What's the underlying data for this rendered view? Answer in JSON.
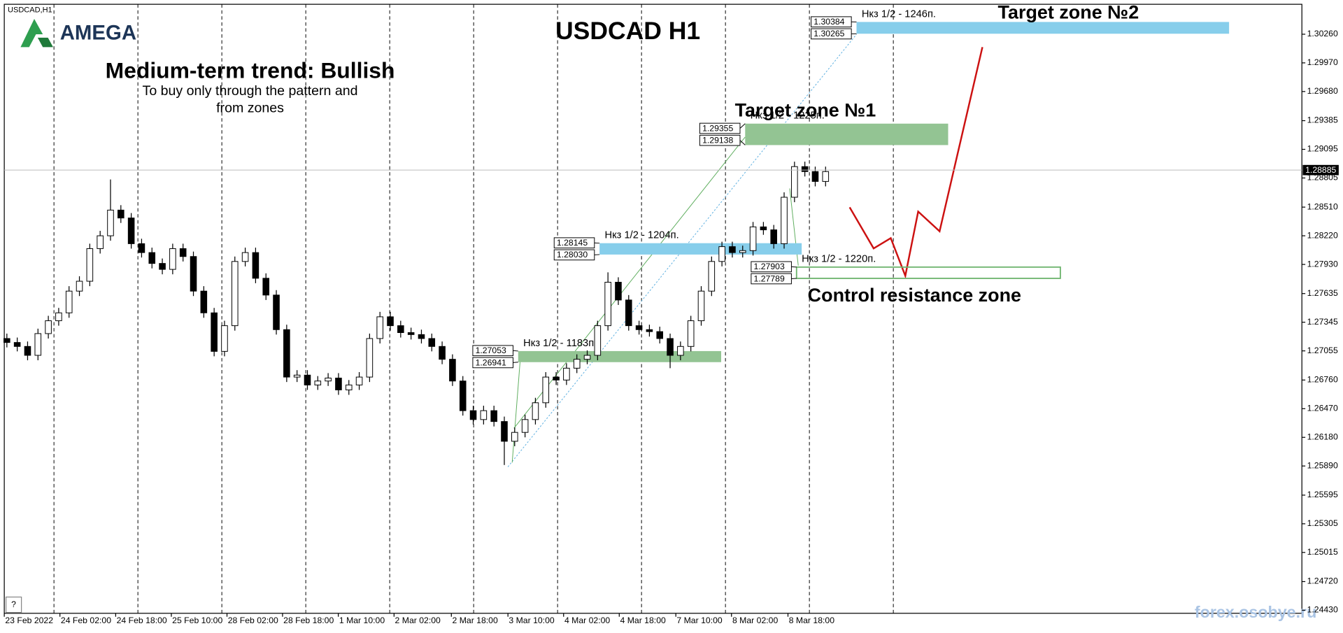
{
  "chart_data": {
    "type": "candlestick",
    "symbol_label": "USDCAD,H1",
    "brand": "AMEGA",
    "title": "USDCAD H1",
    "subtitle": "Medium-term trend: Bullish",
    "notes": [
      "To buy only through the pattern  and",
      "from zones"
    ],
    "watermark": "forex.osobye.ru",
    "help": "?",
    "up_color": "#ffffff",
    "down_color": "#000000",
    "wick_color": "#000000",
    "open": [
      1.2718,
      1.2714,
      1.271,
      1.2701,
      1.2723,
      1.2736,
      1.2744,
      1.2766,
      1.2776,
      1.2809,
      1.2822,
      1.2848,
      1.284,
      1.2814,
      1.2805,
      1.2794,
      1.2788,
      1.2809,
      1.2801,
      1.2766,
      1.2744,
      1.2705,
      1.2731,
      1.2796,
      1.2805,
      1.2779,
      1.2762,
      1.2727,
      1.2679,
      1.2681,
      1.2671,
      1.2675,
      1.2678,
      1.2666,
      1.2671,
      1.2679,
      1.2718,
      1.274,
      1.2731,
      1.2724,
      1.2722,
      1.2718,
      1.271,
      1.2697,
      1.2675,
      1.2645,
      1.2636,
      1.2645,
      1.2634,
      1.2614,
      1.2623,
      1.2636,
      1.2653,
      1.2679,
      1.2676,
      1.2688,
      1.2697,
      1.2701,
      1.2731,
      1.2775,
      1.2757,
      1.2731,
      1.2727,
      1.2725,
      1.2718,
      1.2701,
      1.271,
      1.2736,
      1.2766,
      1.2796,
      1.2811,
      1.2805,
      1.2807,
      1.2831,
      1.2828,
      1.2814,
      1.2861,
      1.2892,
      1.2887,
      1.2877
    ],
    "high": [
      1.2723,
      1.2719,
      1.2715,
      1.2728,
      1.2741,
      1.2749,
      1.2771,
      1.2781,
      1.2814,
      1.2827,
      1.2879,
      1.2853,
      1.2845,
      1.2819,
      1.281,
      1.2799,
      1.2814,
      1.2814,
      1.2806,
      1.2771,
      1.2749,
      1.2736,
      1.2801,
      1.281,
      1.281,
      1.2784,
      1.2767,
      1.2732,
      1.2686,
      1.2686,
      1.268,
      1.2683,
      1.2683,
      1.2676,
      1.2684,
      1.2723,
      1.2745,
      1.2745,
      1.2736,
      1.2729,
      1.2727,
      1.2723,
      1.2715,
      1.2702,
      1.268,
      1.265,
      1.265,
      1.265,
      1.2639,
      1.2628,
      1.2641,
      1.2658,
      1.2684,
      1.2684,
      1.2693,
      1.2702,
      1.2706,
      1.2736,
      1.2785,
      1.278,
      1.2762,
      1.2736,
      1.2732,
      1.273,
      1.2723,
      1.2715,
      1.2741,
      1.2771,
      1.2801,
      1.2816,
      1.2816,
      1.2812,
      1.2836,
      1.2836,
      1.2833,
      1.2866,
      1.2897,
      1.2897,
      1.2892,
      1.2892
    ],
    "low": [
      1.2709,
      1.2705,
      1.2696,
      1.2696,
      1.2718,
      1.2731,
      1.2739,
      1.2761,
      1.2771,
      1.2804,
      1.2817,
      1.2835,
      1.2809,
      1.28,
      1.2789,
      1.2783,
      1.2783,
      1.2796,
      1.2761,
      1.2739,
      1.27,
      1.27,
      1.2726,
      1.2791,
      1.2774,
      1.2757,
      1.2722,
      1.2674,
      1.2674,
      1.2666,
      1.2666,
      1.267,
      1.2661,
      1.2661,
      1.2666,
      1.2674,
      1.2713,
      1.2726,
      1.2719,
      1.2717,
      1.2713,
      1.2705,
      1.2692,
      1.267,
      1.264,
      1.2631,
      1.2631,
      1.2629,
      1.259,
      1.2609,
      1.2618,
      1.2631,
      1.2648,
      1.2671,
      1.2671,
      1.2683,
      1.2692,
      1.2696,
      1.2726,
      1.2752,
      1.2726,
      1.2722,
      1.272,
      1.2713,
      1.2688,
      1.2696,
      1.2705,
      1.2731,
      1.2761,
      1.2791,
      1.28,
      1.28,
      1.2802,
      1.2823,
      1.2809,
      1.2809,
      1.2856,
      1.2882,
      1.2872,
      1.2872
    ],
    "close": [
      1.2714,
      1.271,
      1.2701,
      1.2723,
      1.2736,
      1.2744,
      1.2766,
      1.2776,
      1.2809,
      1.2822,
      1.2848,
      1.284,
      1.2814,
      1.2805,
      1.2794,
      1.2788,
      1.2809,
      1.2801,
      1.2766,
      1.2744,
      1.2705,
      1.2731,
      1.2796,
      1.2805,
      1.2779,
      1.2762,
      1.2727,
      1.2679,
      1.2681,
      1.2671,
      1.2675,
      1.2678,
      1.2666,
      1.2671,
      1.2679,
      1.2718,
      1.274,
      1.2731,
      1.2724,
      1.2722,
      1.2718,
      1.271,
      1.2697,
      1.2675,
      1.2645,
      1.2636,
      1.2645,
      1.2634,
      1.2614,
      1.2623,
      1.2636,
      1.2653,
      1.2679,
      1.2676,
      1.2688,
      1.2697,
      1.2701,
      1.2731,
      1.2775,
      1.2757,
      1.2731,
      1.2727,
      1.2725,
      1.2718,
      1.2701,
      1.271,
      1.2736,
      1.2766,
      1.2796,
      1.2811,
      1.2805,
      1.2807,
      1.2831,
      1.2828,
      1.2814,
      1.2861,
      1.2892,
      1.2887,
      1.2877,
      1.2887
    ],
    "last_price": 1.28885,
    "xlim": [
      -0.25,
      124.96
    ],
    "xticks": [
      {
        "value": -0.25,
        "label": "23 Feb 2022"
      },
      {
        "value": 5.12,
        "label": "24 Feb 02:00"
      },
      {
        "value": 10.5,
        "label": "24 Feb 18:00"
      },
      {
        "value": 15.87,
        "label": "25 Feb 10:00"
      },
      {
        "value": 21.24,
        "label": "28 Feb 02:00"
      },
      {
        "value": 26.6,
        "label": "28 Feb 18:00"
      },
      {
        "value": 31.98,
        "label": "1 Mar 10:00"
      },
      {
        "value": 37.36,
        "label": "2 Mar 02:00"
      },
      {
        "value": 42.89,
        "label": "2 Mar 18:00"
      },
      {
        "value": 48.35,
        "label": "3 Mar 10:00"
      },
      {
        "value": 53.72,
        "label": "4 Mar 02:00"
      },
      {
        "value": 59.09,
        "label": "4 Mar 18:00"
      },
      {
        "value": 64.55,
        "label": "7 Mar 10:00"
      },
      {
        "value": 69.92,
        "label": "8 Mar 02:00"
      },
      {
        "value": 75.37,
        "label": "8 Mar 18:00"
      }
    ],
    "ylim": [
      1.24399,
      1.30563
    ],
    "yticks": [
      {
        "value": 1.3026,
        "label": "1.30260"
      },
      {
        "value": 1.2997,
        "label": "1.29970"
      },
      {
        "value": 1.2968,
        "label": "1.29680"
      },
      1.29385,
      1.29095,
      1.28805,
      {
        "value": 1.2851,
        "label": "1.28510"
      },
      {
        "value": 1.2822,
        "label": "1.28220"
      },
      {
        "value": 1.2793,
        "label": "1.27930"
      },
      1.27635,
      1.27345,
      1.27055,
      {
        "value": 1.2676,
        "label": "1.26760"
      },
      {
        "value": 1.2647,
        "label": "1.26470"
      },
      {
        "value": 1.2618,
        "label": "1.26180"
      },
      {
        "value": 1.2589,
        "label": "1.25890"
      },
      1.25595,
      1.25305,
      1.25015,
      {
        "value": 1.2472,
        "label": "1.24720"
      },
      {
        "value": 1.2443,
        "label": "1.24430"
      }
    ],
    "zones": [
      {
        "values": [
          1.27053,
          1.26941
        ],
        "value_labels": [
          "1.27053",
          "1.26941"
        ],
        "note": "Нкз 1/2 - 1183п.",
        "color": "#93c493",
        "style": "filled"
      },
      {
        "values": [
          1.28145,
          1.2803
        ],
        "value_labels": [
          "1.28145",
          "1.28030"
        ],
        "note": "Нкз 1/2 - 1204п.",
        "color": "#87ceeb",
        "style": "filled"
      },
      {
        "values": [
          1.29355,
          1.29138
        ],
        "value_labels": [
          "1.29355",
          "1.29138"
        ],
        "note": "Нкз 1/2 - 1225п.",
        "color": "#93c493",
        "style": "filled",
        "label": "Target zone №1"
      },
      {
        "values": [
          1.30384,
          1.30265
        ],
        "value_labels": [
          "1.30384",
          "1.30265"
        ],
        "note": "Нкз 1/2 - 1246п.",
        "color": "#87ceeb",
        "style": "filled",
        "label": "Target zone №2"
      },
      {
        "values": [
          1.27903,
          1.27789
        ],
        "value_labels": [
          "1.27903",
          "1.27789"
        ],
        "note": "Нкз 1/2 - 1220п.",
        "color": "#6fb56f",
        "style": "outline",
        "label": "Control resistance zone"
      }
    ]
  }
}
